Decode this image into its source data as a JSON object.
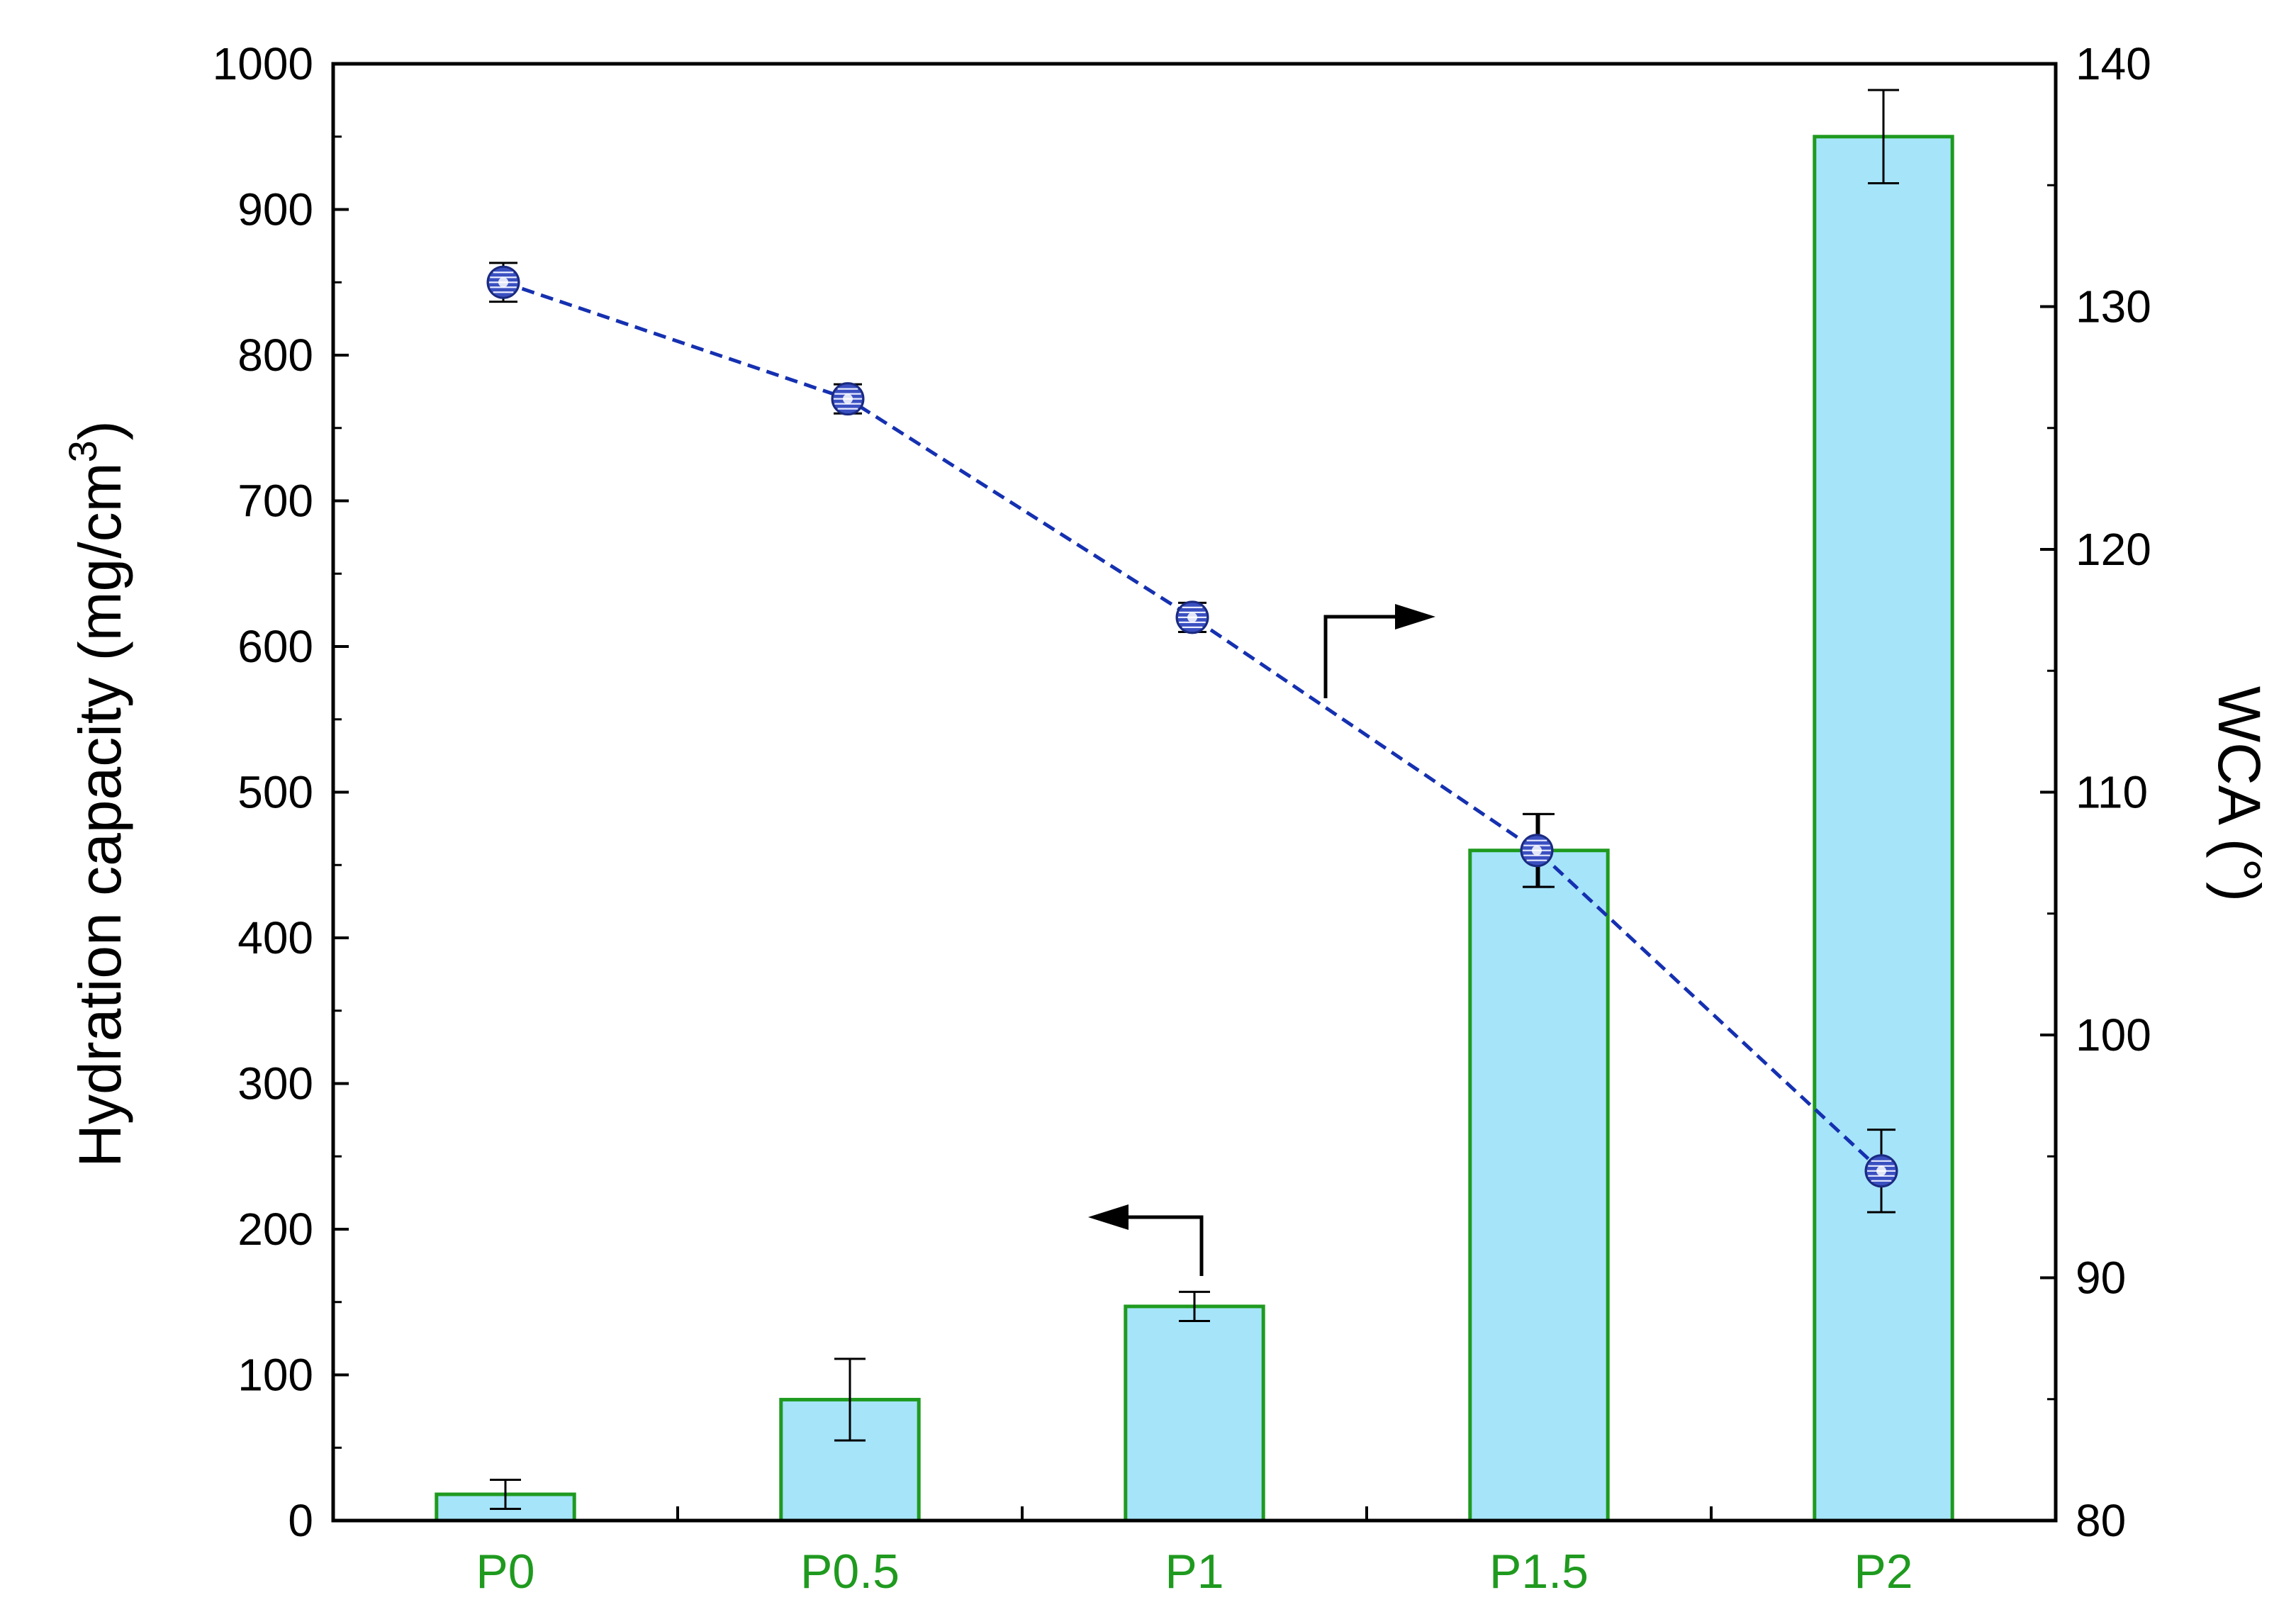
{
  "chart_data": {
    "type": "bar",
    "categories": [
      "P0",
      "P0.5",
      "P1",
      "P1.5",
      "P2"
    ],
    "category_color": "#1f9a1f",
    "left_axis": {
      "label": "Hydration capacity (mg/cm",
      "label_superscript": "3",
      "label_suffix": ")",
      "ylim": [
        0,
        1000
      ],
      "ticks": [
        "0",
        "100",
        "200",
        "300",
        "400",
        "500",
        "600",
        "700",
        "800",
        "900",
        "1000"
      ]
    },
    "right_axis": {
      "label": "WCA (°)",
      "ylim": [
        80,
        140
      ],
      "ticks": [
        "80",
        "90",
        "100",
        "110",
        "120",
        "130",
        "140"
      ]
    },
    "bar_series": {
      "axis": "left",
      "values": [
        18,
        83,
        147,
        460,
        950
      ],
      "errors": [
        10,
        28,
        10,
        25,
        32
      ],
      "fill": "#a6e4fa",
      "stroke": "#1f9a1f"
    },
    "line_series": {
      "axis": "right",
      "values": [
        131,
        126.2,
        117.2,
        107.6,
        94.4
      ],
      "errors": [
        0.8,
        0.6,
        0.6,
        1.5,
        1.7
      ],
      "line_color": "#1530b0",
      "line_style": "dashed",
      "marker_color": "#3a4fc0"
    },
    "annotations": [
      {
        "type": "arrow",
        "direction": "right",
        "meaning": "line series uses right axis"
      },
      {
        "type": "arrow",
        "direction": "left",
        "meaning": "bar series uses left axis"
      }
    ],
    "grid": false
  }
}
